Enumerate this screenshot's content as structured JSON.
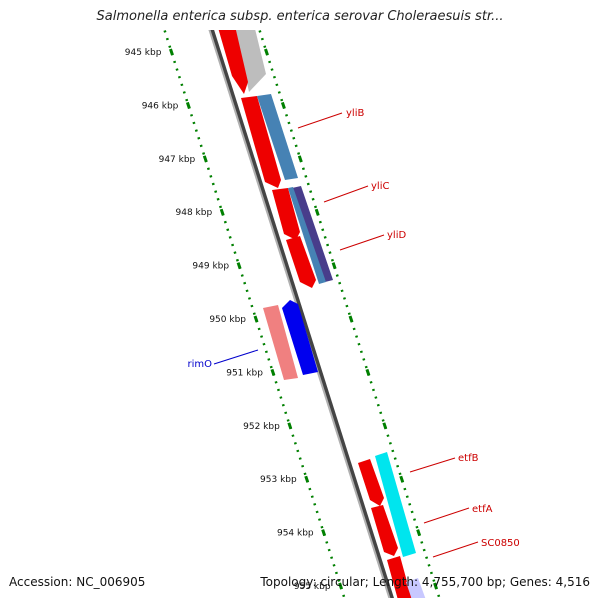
{
  "title": "Salmonella enterica subsp. enterica serovar Choleraesuis str...",
  "footer": {
    "accession": "Accession: NC_006905",
    "stats": "Topology: circular; Length: 4,755,700 bp; Genes: 4,516"
  },
  "colors": {
    "forward_cds": "#ff0000",
    "reverse_strand_gray": "#bbbbbb",
    "ruler": "#008000",
    "backbone": "#777777",
    "yliB_track": "#4682b4",
    "yliC_track": "#483d8b",
    "rimO_light": "#f08080",
    "rimO_dark": "#0000ff",
    "etf_track": "#00e5ee",
    "sc0850_track": "#c8c8ff",
    "red_label": "#cc0000",
    "blue_label": "#0000cc"
  },
  "ruler": {
    "unit": "kbp",
    "ticks": [
      {
        "kbp": 945,
        "label": "945 kbp"
      },
      {
        "kbp": 946,
        "label": "946 kbp"
      },
      {
        "kbp": 947,
        "label": "947 kbp"
      },
      {
        "kbp": 948,
        "label": "948 kbp"
      },
      {
        "kbp": 949,
        "label": "949 kbp"
      },
      {
        "kbp": 950,
        "label": "950 kbp"
      },
      {
        "kbp": 951,
        "label": "951 kbp"
      },
      {
        "kbp": 952,
        "label": "952 kbp"
      },
      {
        "kbp": 953,
        "label": "953 kbp"
      },
      {
        "kbp": 954,
        "label": "954 kbp"
      },
      {
        "kbp": 955,
        "label": "955 kbp"
      }
    ]
  },
  "genes": [
    {
      "name": "yliB",
      "color": "#cc0000"
    },
    {
      "name": "yliC",
      "color": "#cc0000"
    },
    {
      "name": "yliD",
      "color": "#cc0000"
    },
    {
      "name": "rimO",
      "color": "#0000cc"
    },
    {
      "name": "etfB",
      "color": "#cc0000"
    },
    {
      "name": "etfA",
      "color": "#cc0000"
    },
    {
      "name": "SC0850",
      "color": "#cc0000"
    }
  ]
}
